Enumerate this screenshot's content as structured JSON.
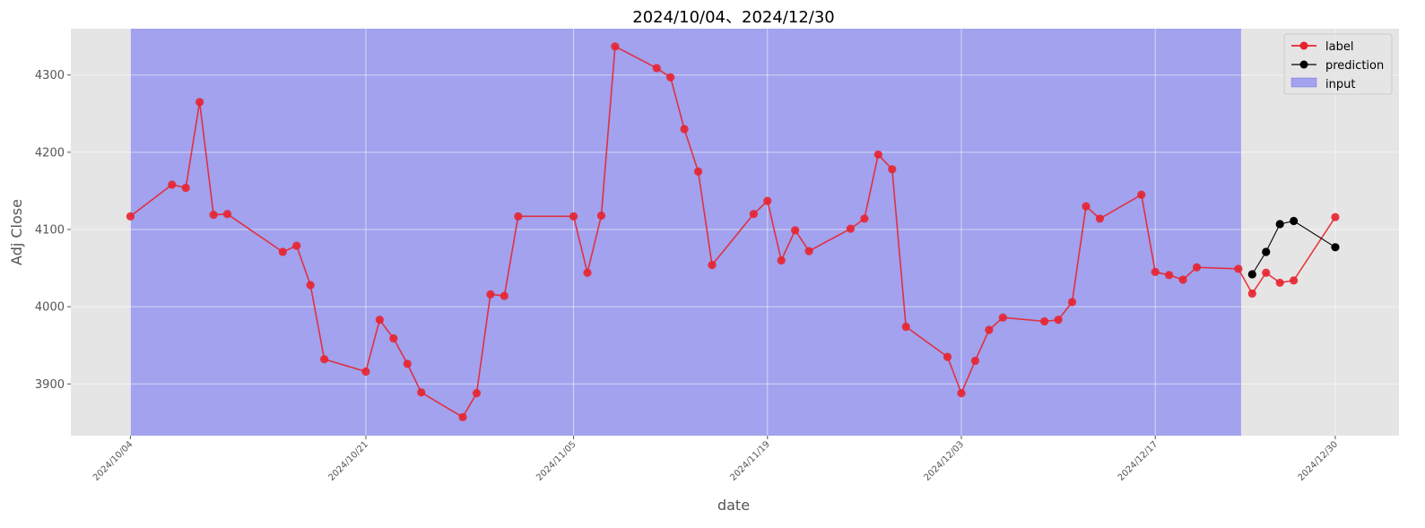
{
  "chart_data": {
    "type": "line",
    "title": "2024/10/04、2024/12/30",
    "xlabel": "date",
    "ylabel": "Adj Close",
    "ylim": [
      3833,
      4360
    ],
    "yticks": [
      3900,
      4000,
      4100,
      4200,
      4300
    ],
    "xlim_day": [
      -4.3,
      91.6
    ],
    "xticks": [
      {
        "label": "2024/10/04",
        "day": 0
      },
      {
        "label": "2024/10/21",
        "day": 17
      },
      {
        "label": "2024/11/05",
        "day": 32
      },
      {
        "label": "2024/11/19",
        "day": 46
      },
      {
        "label": "2024/12/03",
        "day": 60
      },
      {
        "label": "2024/12/17",
        "day": 74
      },
      {
        "label": "2024/12/30",
        "day": 87
      }
    ],
    "input_span_days": [
      0,
      80.2
    ],
    "grid": true,
    "legend_position": "top-right",
    "legend": [
      "label",
      "prediction",
      "input"
    ],
    "colors": {
      "background": "#e5e5e5",
      "grid": "#ffffff",
      "label": "#e8232f",
      "prediction": "#000000",
      "input": "#8b8bf0"
    },
    "series": [
      {
        "name": "label",
        "x": [
          0,
          3,
          4,
          5,
          6,
          7,
          11,
          12,
          13,
          14,
          17,
          18,
          19,
          20,
          21,
          24,
          25,
          26,
          27,
          28,
          32,
          33,
          34,
          35,
          38,
          39,
          40,
          41,
          42,
          45,
          46,
          47,
          48,
          49,
          52,
          53,
          54,
          55,
          56,
          59,
          60,
          61,
          62,
          63,
          66,
          67,
          68,
          69,
          70,
          73,
          74,
          75,
          76,
          77,
          80,
          81,
          82,
          83,
          84,
          87
        ],
        "y": [
          4117,
          4158,
          4154,
          4265,
          4119,
          4120,
          4071,
          4079,
          4028,
          3932,
          3916,
          3983,
          3959,
          3926,
          3889,
          3857,
          3888,
          4016,
          4014,
          4117,
          4117,
          4044,
          4118,
          4337,
          4309,
          4297,
          4230,
          4175,
          4054,
          4120,
          4137,
          4060,
          4099,
          4072,
          4101,
          4114,
          4197,
          4178,
          3974,
          3935,
          3888,
          3930,
          3970,
          3986,
          3981,
          3983,
          4006,
          4130,
          4114,
          4145,
          4045,
          4041,
          4035,
          4051,
          4049,
          4017,
          4044,
          4031,
          4034,
          4116
        ]
      },
      {
        "name": "prediction",
        "x": [
          81,
          82,
          83,
          84,
          87
        ],
        "y": [
          4042,
          4071,
          4107,
          4111,
          4077
        ]
      }
    ]
  }
}
